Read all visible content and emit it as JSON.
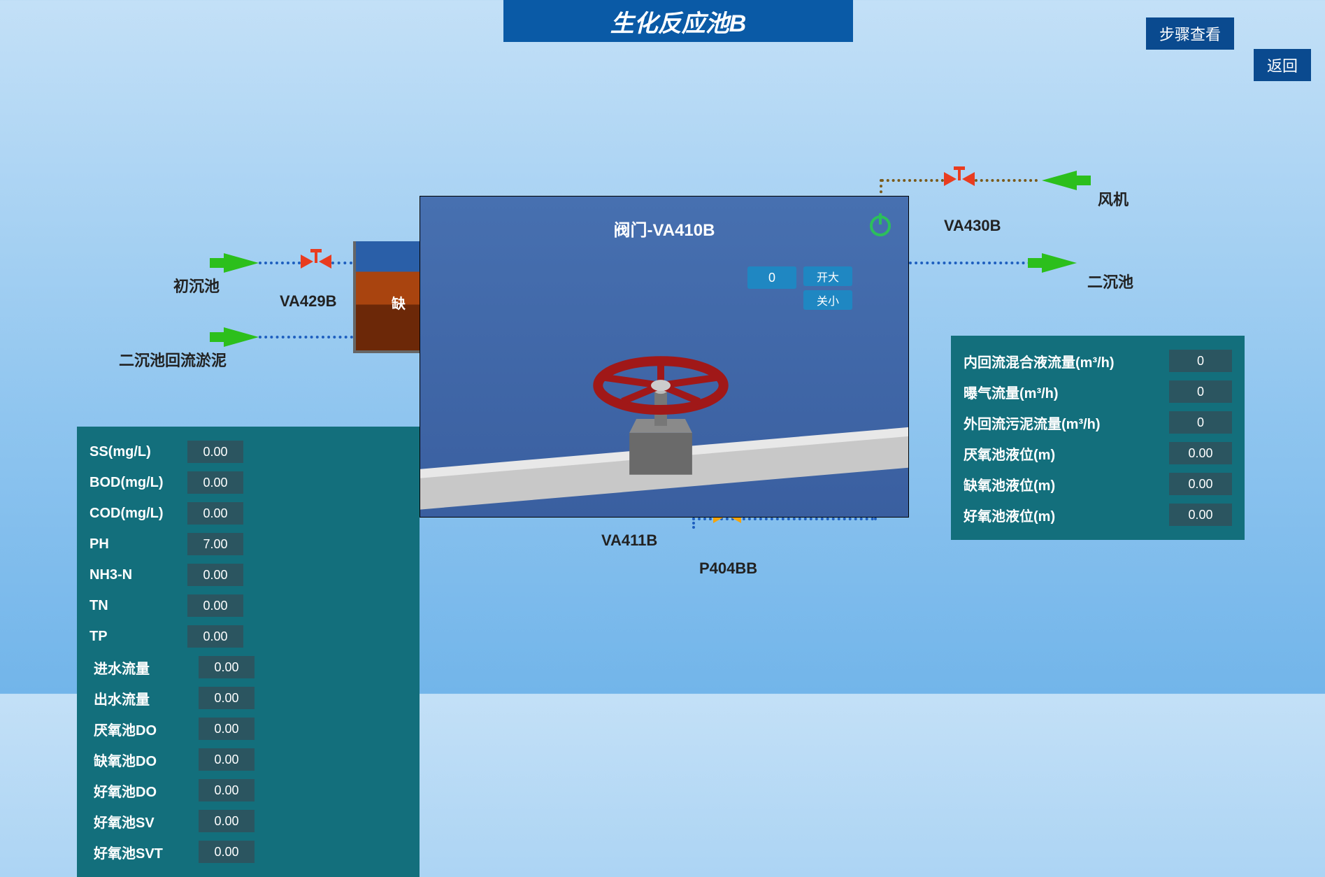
{
  "title": "生化反应池B",
  "buttons": {
    "steps": "步骤查看",
    "back": "返回"
  },
  "labels": {
    "inlet": "初沉池",
    "sludge_return": "二沉池回流淤泥",
    "fan": "风机",
    "outlet": "二沉池",
    "va429b": "VA429B",
    "va430b": "VA430B",
    "va411b": "VA411B",
    "p404bb": "P404BB",
    "tank": "缺"
  },
  "left_panel": {
    "col1": [
      {
        "label": "SS(mg/L)",
        "value": "0.00"
      },
      {
        "label": "BOD(mg/L)",
        "value": "0.00"
      },
      {
        "label": "COD(mg/L)",
        "value": "0.00"
      },
      {
        "label": "PH",
        "value": "7.00"
      },
      {
        "label": "NH3-N",
        "value": "0.00"
      },
      {
        "label": "TN",
        "value": "0.00"
      },
      {
        "label": "TP",
        "value": "0.00"
      }
    ],
    "col2": [
      {
        "label": "进水流量",
        "value": "0.00"
      },
      {
        "label": "出水流量",
        "value": "0.00"
      },
      {
        "label": "厌氧池DO",
        "value": "0.00"
      },
      {
        "label": "缺氧池DO",
        "value": "0.00"
      },
      {
        "label": "好氧池DO",
        "value": "0.00"
      },
      {
        "label": "好氧池SV",
        "value": "0.00"
      },
      {
        "label": "好氧池SVT",
        "value": "0.00"
      }
    ]
  },
  "right_panel": [
    {
      "label": "内回流混合液流量(m³/h)",
      "value": "0"
    },
    {
      "label": "曝气流量(m³/h)",
      "value": "0"
    },
    {
      "label": "外回流污泥流量(m³/h)",
      "value": "0"
    },
    {
      "label": "厌氧池液位(m)",
      "value": "0.00"
    },
    {
      "label": "缺氧池液位(m)",
      "value": "0.00"
    },
    {
      "label": "好氧池液位(m)",
      "value": "0.00"
    }
  ],
  "modal": {
    "title": "阀门-VA410B",
    "value": "0",
    "open": "开大",
    "close": "关小"
  },
  "colors": {
    "panel_bg": "#136f7c",
    "value_bg": "#2b5560",
    "title_bg": "#0a5aa6",
    "arrow": "#2cbf1c",
    "valve": "#e93c1f"
  }
}
